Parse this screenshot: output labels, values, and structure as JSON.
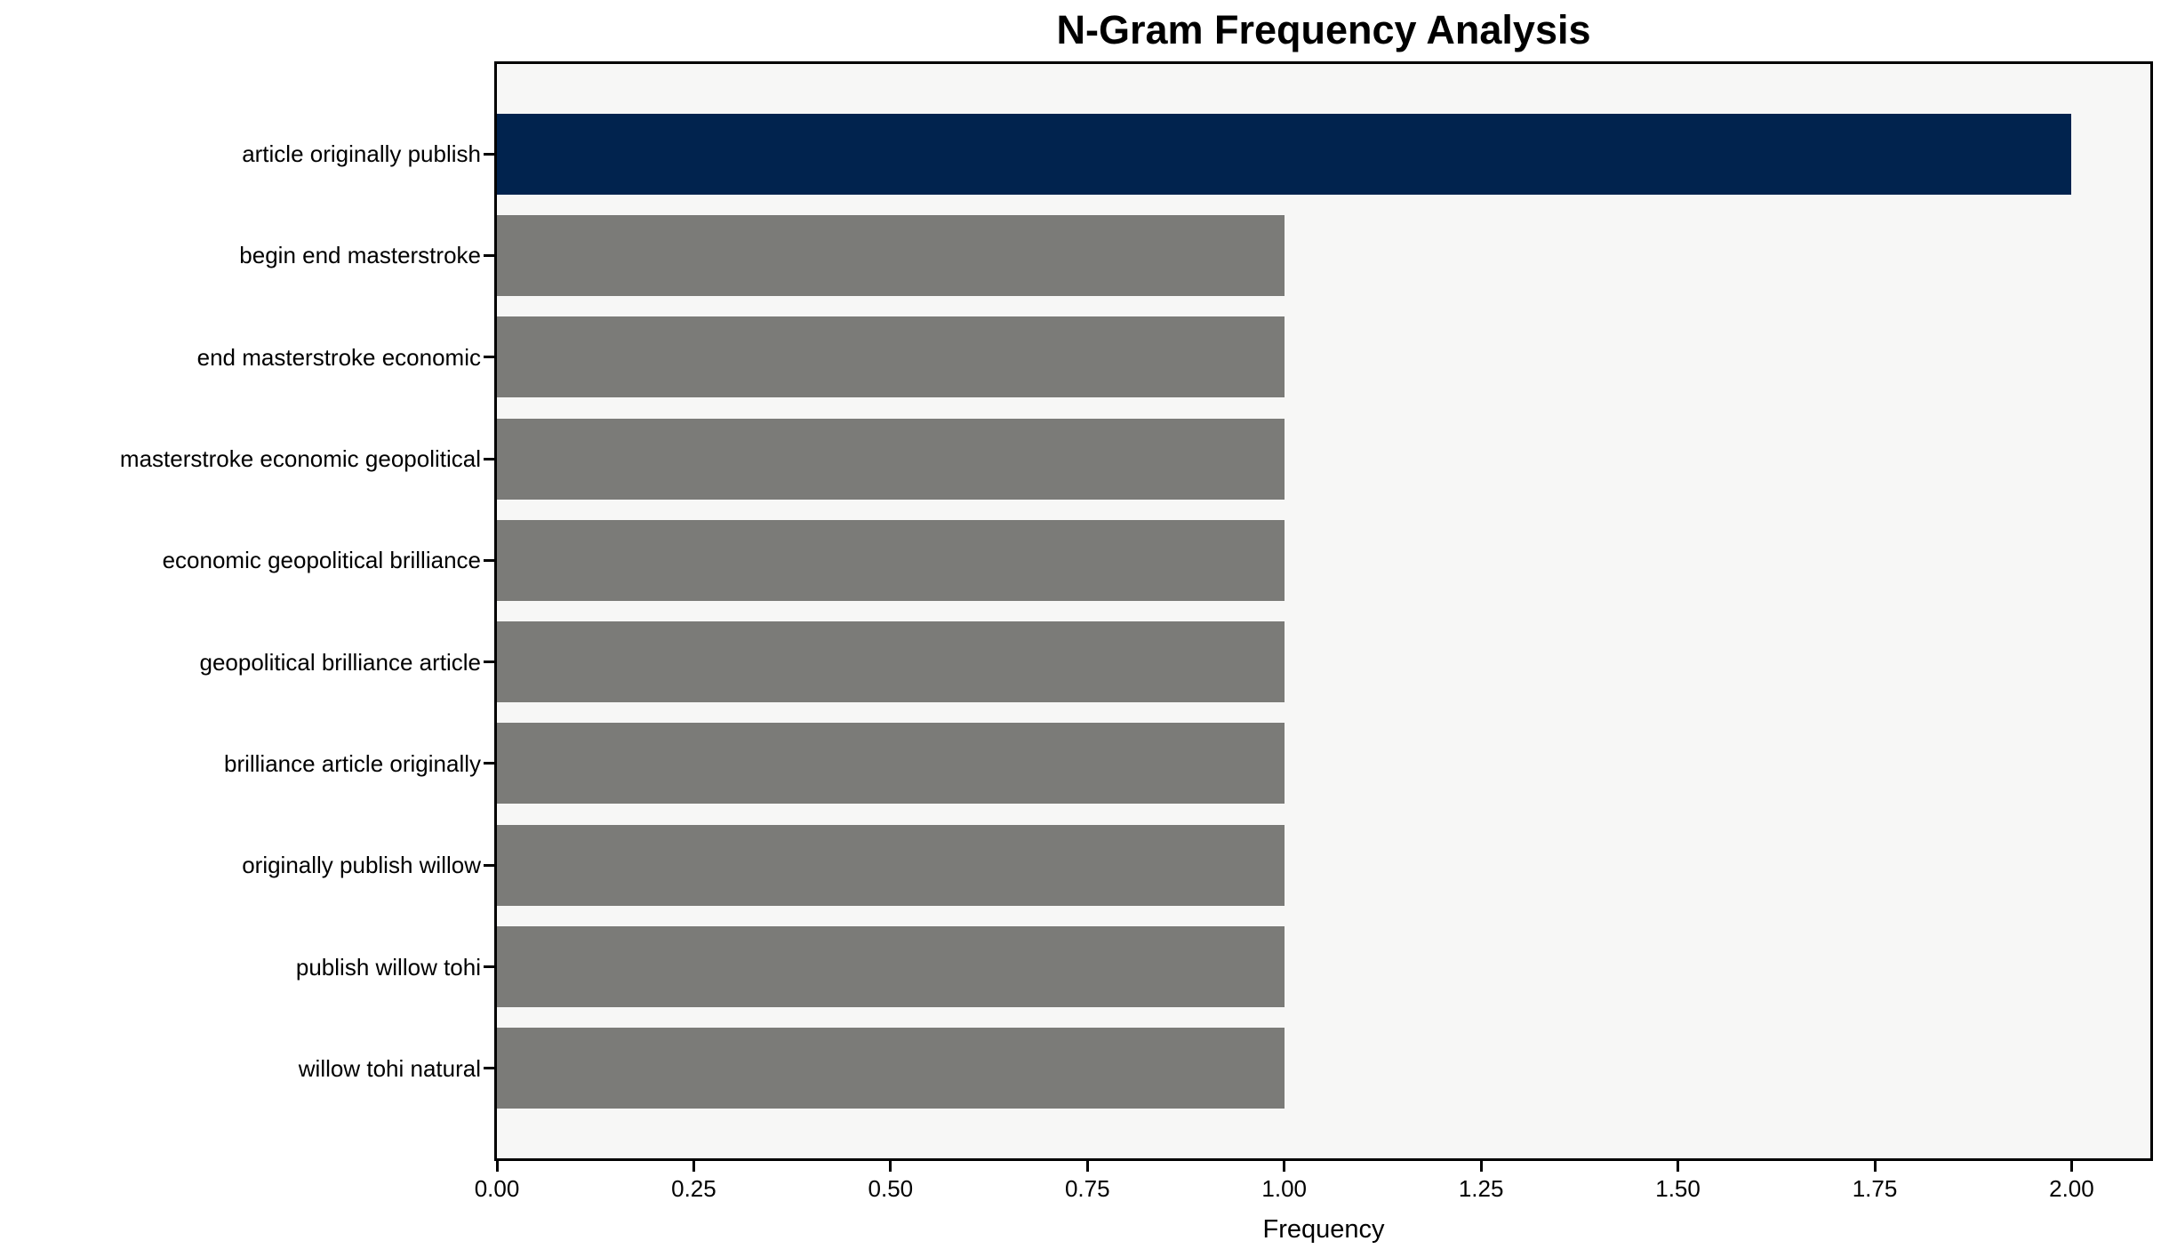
{
  "chart_data": {
    "type": "bar",
    "orientation": "horizontal",
    "title": "N-Gram Frequency Analysis",
    "xlabel": "Frequency",
    "ylabel": "",
    "categories": [
      "article originally publish",
      "begin end masterstroke",
      "end masterstroke economic",
      "masterstroke economic geopolitical",
      "economic geopolitical brilliance",
      "geopolitical brilliance article",
      "brilliance article originally",
      "originally publish willow",
      "publish willow tohi",
      "willow tohi natural"
    ],
    "values": [
      2.0,
      1.0,
      1.0,
      1.0,
      1.0,
      1.0,
      1.0,
      1.0,
      1.0,
      1.0
    ],
    "bar_colors": [
      "#01234e",
      "#7b7b78",
      "#7b7b78",
      "#7b7b78",
      "#7b7b78",
      "#7b7b78",
      "#7b7b78",
      "#7b7b78",
      "#7b7b78",
      "#7b7b78"
    ],
    "xlim": [
      0,
      2.1
    ],
    "xticks": [
      0.0,
      0.25,
      0.5,
      0.75,
      1.0,
      1.25,
      1.5,
      1.75,
      2.0
    ],
    "xtick_labels": [
      "0.00",
      "0.25",
      "0.50",
      "0.75",
      "1.00",
      "1.25",
      "1.50",
      "1.75",
      "2.00"
    ],
    "grid": false,
    "legend_position": "none",
    "colors": {
      "highlight_bar": "#01234e",
      "default_bar": "#7b7b78",
      "plot_background": "#f7f7f6",
      "figure_background": "#ffffff",
      "spine": "#000000",
      "text": "#000000"
    }
  }
}
